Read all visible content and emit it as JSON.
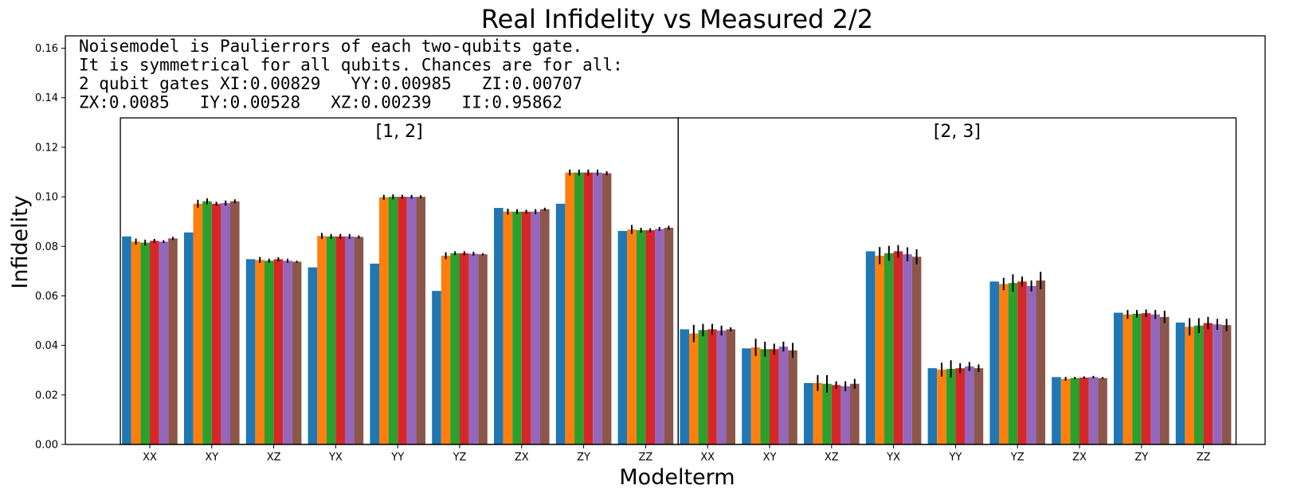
{
  "chart_data": {
    "type": "bar",
    "title": "Real Infidelity vs Measured 2/2",
    "xlabel": "Modelterm",
    "ylabel": "Infidelity",
    "ylim": [
      0,
      0.165
    ],
    "yticks": [
      0.0,
      0.02,
      0.04,
      0.06,
      0.08,
      0.1,
      0.12,
      0.14,
      0.16
    ],
    "ytick_labels": [
      "0.00",
      "0.02",
      "0.04",
      "0.06",
      "0.08",
      "0.10",
      "0.12",
      "0.14",
      "0.16"
    ],
    "grid": false,
    "annotation_lines": [
      "Noisemodel is Paulierrors of each two-qubits gate.",
      "It is symmetrical for all qubits. Chances are for all:",
      "2 qubit gates XI:0.00829   YY:0.00985   ZI:0.00707",
      "ZX:0.0085   IY:0.00528   XZ:0.00239   II:0.95862"
    ],
    "colors": [
      "#1f77b4",
      "#ff7f0e",
      "#2ca02c",
      "#d62728",
      "#9467bd",
      "#8c564b"
    ],
    "groups": [
      {
        "label": "[1, 2]",
        "categories": [
          "XX",
          "XY",
          "XZ",
          "YX",
          "YY",
          "YZ",
          "ZX",
          "ZY",
          "ZZ"
        ],
        "values": [
          [
            0.084,
            0.0819,
            0.0815,
            0.0822,
            0.0819,
            0.0832
          ],
          [
            0.0856,
            0.0972,
            0.0982,
            0.0972,
            0.0975,
            0.0982
          ],
          [
            0.0748,
            0.0745,
            0.0742,
            0.0748,
            0.0742,
            0.0738
          ],
          [
            0.0715,
            0.0842,
            0.084,
            0.084,
            0.084,
            0.0838
          ],
          [
            0.073,
            0.0998,
            0.1,
            0.1,
            0.1,
            0.1
          ],
          [
            0.062,
            0.0762,
            0.0772,
            0.0772,
            0.077,
            0.0768
          ],
          [
            0.0955,
            0.094,
            0.094,
            0.094,
            0.094,
            0.095
          ],
          [
            0.0972,
            0.1098,
            0.1098,
            0.1098,
            0.1098,
            0.1095
          ],
          [
            0.0862,
            0.0868,
            0.0865,
            0.0865,
            0.087,
            0.0875
          ]
        ],
        "errors": [
          [
            0,
            0.0012,
            0.0012,
            0.0008,
            0.0006,
            0.0006
          ],
          [
            0,
            0.0016,
            0.0012,
            0.0008,
            0.001,
            0.0008
          ],
          [
            0,
            0.0012,
            0.0008,
            0.0008,
            0.0008,
            0.0004
          ],
          [
            0,
            0.0012,
            0.001,
            0.001,
            0.001,
            0.0006
          ],
          [
            0,
            0.001,
            0.001,
            0.0008,
            0.0008,
            0.0006
          ],
          [
            0,
            0.0014,
            0.0008,
            0.0008,
            0.0008,
            0.0004
          ],
          [
            0,
            0.0012,
            0.001,
            0.0008,
            0.001,
            0.0006
          ],
          [
            0,
            0.0012,
            0.0012,
            0.0012,
            0.0012,
            0.0008
          ],
          [
            0,
            0.0018,
            0.001,
            0.0008,
            0.0008,
            0.0008
          ]
        ]
      },
      {
        "label": "[2, 3]",
        "categories": [
          "XX",
          "XY",
          "XZ",
          "YX",
          "YY",
          "YZ",
          "ZX",
          "ZY",
          "ZZ"
        ],
        "values": [
          [
            0.0465,
            0.0448,
            0.0462,
            0.0465,
            0.046,
            0.0465
          ],
          [
            0.0388,
            0.0392,
            0.0385,
            0.0385,
            0.0395,
            0.038
          ],
          [
            0.0248,
            0.0248,
            0.0245,
            0.024,
            0.0235,
            0.0245
          ],
          [
            0.078,
            0.0762,
            0.0772,
            0.078,
            0.0768,
            0.0758
          ],
          [
            0.0308,
            0.0302,
            0.0305,
            0.0308,
            0.0315,
            0.0308
          ],
          [
            0.0658,
            0.0648,
            0.0652,
            0.0658,
            0.064,
            0.0662
          ],
          [
            0.0272,
            0.0265,
            0.0268,
            0.027,
            0.0272,
            0.0268
          ],
          [
            0.0532,
            0.0525,
            0.0528,
            0.053,
            0.0525,
            0.0515
          ],
          [
            0.0492,
            0.0475,
            0.048,
            0.049,
            0.0485,
            0.0482
          ]
        ],
        "errors": [
          [
            0,
            0.0035,
            0.0025,
            0.0022,
            0.002,
            0.0008
          ],
          [
            0,
            0.0035,
            0.003,
            0.0022,
            0.002,
            0.003
          ],
          [
            0,
            0.0032,
            0.0035,
            0.0015,
            0.002,
            0.002
          ],
          [
            0,
            0.0035,
            0.003,
            0.0025,
            0.0028,
            0.003
          ],
          [
            0,
            0.0028,
            0.0035,
            0.002,
            0.0018,
            0.0015
          ],
          [
            0,
            0.0025,
            0.0035,
            0.002,
            0.0022,
            0.0035
          ],
          [
            0,
            0.0008,
            0.0005,
            0.0005,
            0.0005,
            0.0004
          ],
          [
            0,
            0.0018,
            0.0015,
            0.0015,
            0.0018,
            0.0025
          ],
          [
            0,
            0.0035,
            0.003,
            0.0025,
            0.0022,
            0.0025
          ]
        ]
      }
    ]
  }
}
